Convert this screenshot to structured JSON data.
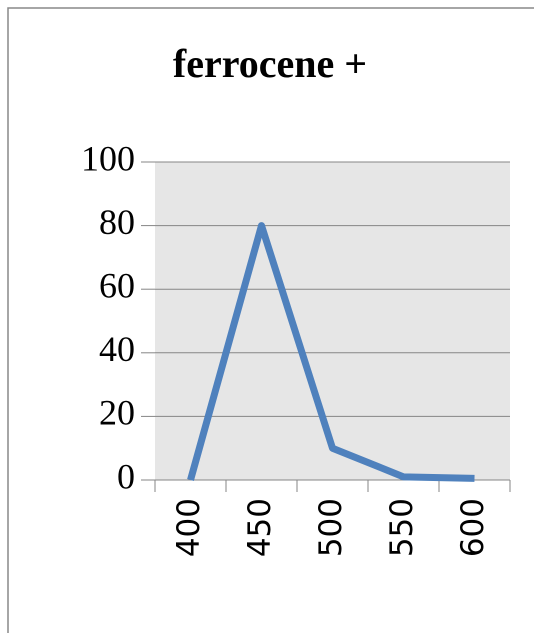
{
  "chart_data": {
    "type": "line",
    "title": "ferrocene +",
    "categories": [
      "400",
      "450",
      "500",
      "550",
      "600"
    ],
    "values": [
      0,
      80,
      10,
      1,
      0.5
    ],
    "color": "#4f81bd",
    "ylim": [
      0,
      100
    ],
    "yticks": [
      0,
      20,
      40,
      60,
      80,
      100
    ],
    "grid": true
  }
}
